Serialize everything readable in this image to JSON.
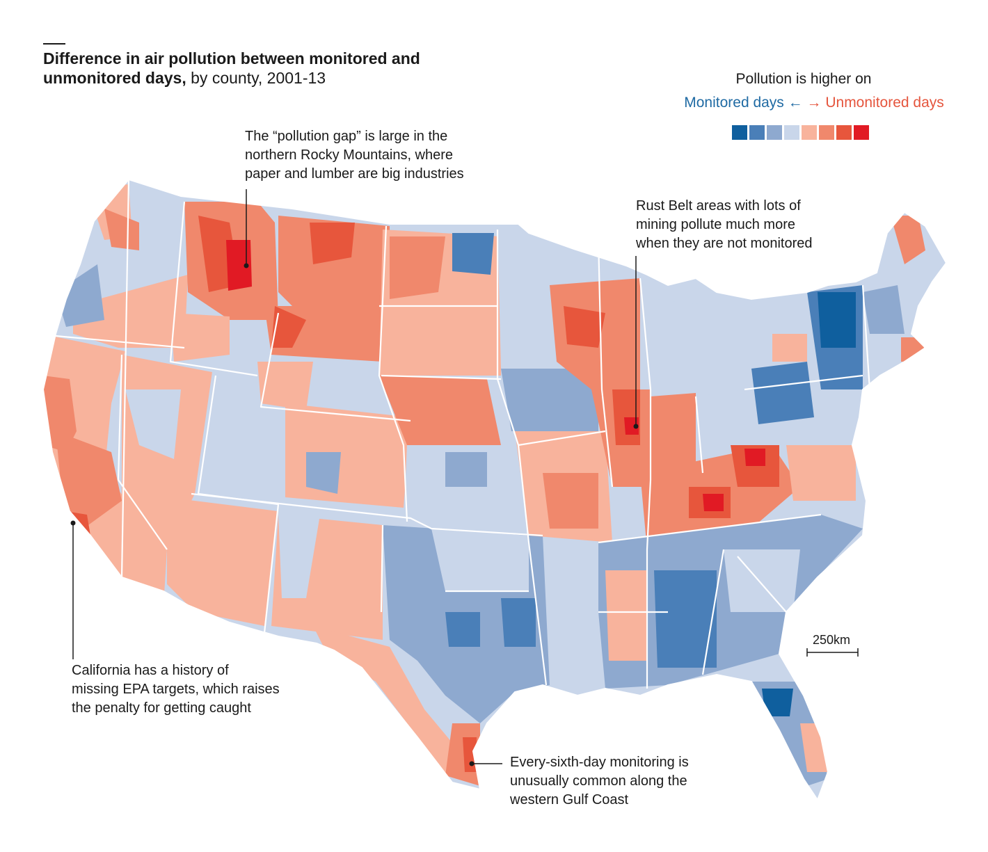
{
  "header": {
    "title_bold": "Difference in air pollution between monitored and unmonitored days,",
    "title_rest": " by county, 2001-13"
  },
  "legend": {
    "title": "Pollution is higher on",
    "monitored": "Monitored days",
    "unmonitored": "Unmonitored days",
    "arrow_left": "←",
    "arrow_right": "→",
    "colors": [
      "#0f5f9e",
      "#4a7fb8",
      "#8ea9cf",
      "#c9d6ea",
      "#f8b39c",
      "#f0886c",
      "#e7563c",
      "#e11a24"
    ]
  },
  "annotations": {
    "rockies": "The “pollution gap” is large in the\nnorthern Rocky Mountains, where\npaper and lumber are big industries",
    "rust_belt": "Rust Belt areas with lots of\nmining pollute much more\nwhen they are not monitored",
    "california": "California has a history of\nmissing EPA targets, which raises\nthe penalty for getting caught",
    "gulf": "Every-sixth-day monitoring is\nunusually common along the\nwestern Gulf Coast"
  },
  "scale_bar": {
    "label": "250km"
  }
}
